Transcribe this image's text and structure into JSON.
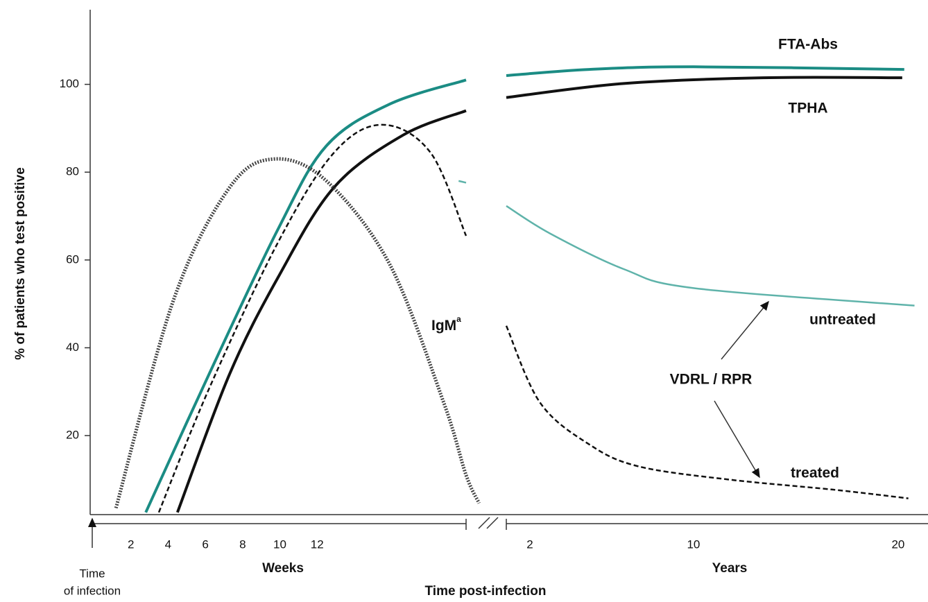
{
  "chart_data": {
    "type": "line",
    "y_label": "% of patients who test positive",
    "ylim": [
      2,
      117
    ],
    "yticks": [
      20,
      40,
      60,
      80,
      100
    ],
    "x_label": "Time post-infection",
    "origin_label": [
      "Time",
      "of infection"
    ],
    "weeks_axis": {
      "label": "Weeks",
      "xlim": [
        0,
        20
      ],
      "xticks": [
        2,
        4,
        6,
        8,
        10,
        12
      ]
    },
    "years_axis": {
      "label": "Years",
      "xlim": [
        0.85,
        21.46
      ],
      "xticks": [
        2,
        10,
        20
      ]
    },
    "group_label": "VDRL / RPR",
    "series": [
      {
        "name": "FTA-Abs",
        "color": "#1b8c84",
        "dash": "solid",
        "width": 4,
        "weeks": {
          "x": [
            2.8,
            6.2,
            9.9,
            12.5,
            15.9,
            20
          ],
          "values": [
            2.5,
            34,
            67,
            86,
            95.5,
            101
          ]
        },
        "years": {
          "x": [
            0.85,
            4.9,
            10,
            20.3
          ],
          "values": [
            102,
            103.4,
            104,
            103.4
          ]
        }
      },
      {
        "name": "TPHA",
        "color": "#111111",
        "dash": "solid",
        "width": 4,
        "weeks": {
          "x": [
            4.5,
            7.3,
            9.9,
            12.9,
            16.6,
            20
          ],
          "values": [
            2.5,
            34,
            56,
            76.5,
            88.4,
            94
          ]
        },
        "years": {
          "x": [
            0.85,
            6.6,
            13.4,
            20.2
          ],
          "values": [
            97,
            100.2,
            101.5,
            101.5
          ]
        }
      },
      {
        "name": "IgM",
        "superscript": "a",
        "color": "#444444",
        "dash": "dotted",
        "width": 5,
        "weeks": {
          "x": [
            1.2,
            4.3,
            7.3,
            9.7,
            12.5,
            15.9,
            18.8,
            20,
            20.7
          ],
          "values": [
            3.5,
            51,
            76.5,
            83,
            78,
            59,
            27.5,
            11,
            4.6
          ]
        },
        "years": {
          "x": [],
          "values": []
        }
      },
      {
        "name": "untreated",
        "color": "#5fb3aa",
        "dash": "solid",
        "width": 2.5,
        "weeks": {
          "x": [
            19.6,
            20
          ],
          "values": [
            78,
            77.6
          ]
        },
        "years": {
          "x": [
            0.85,
            3,
            6.6,
            10,
            20.8
          ],
          "values": [
            72.3,
            66,
            57.9,
            53.6,
            49.6
          ]
        }
      },
      {
        "name": "treated",
        "color": "#111111",
        "dash": "dashed",
        "width": 2.5,
        "weeks": {
          "x": [
            3.5,
            6.2,
            9.9,
            12.9,
            15.5,
            18.1,
            20
          ],
          "values": [
            2.5,
            30.7,
            64,
            84.4,
            90.8,
            84.4,
            65.5
          ]
        },
        "years": {
          "x": [
            0.85,
            2.5,
            4.9,
            7.3,
            11.7,
            16.8,
            20.5
          ],
          "values": [
            45,
            27.5,
            18,
            13,
            10,
            7.7,
            5.7
          ]
        }
      }
    ]
  }
}
